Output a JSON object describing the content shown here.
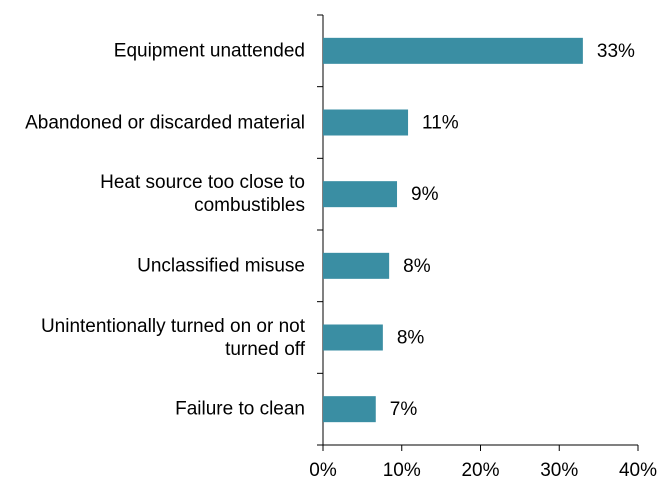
{
  "chart_data": {
    "type": "barh",
    "categories": [
      "Equipment unattended",
      "Abandoned or discarded material",
      "Heat source too close to combustibles",
      "Unclassified misuse",
      "Unintentionally turned on or not turned off",
      "Failure to clean"
    ],
    "values": [
      33,
      10.8,
      9.4,
      8.4,
      7.6,
      6.7
    ],
    "value_labels": [
      "33%",
      "11%",
      "9%",
      "8%",
      "8%",
      "7%"
    ],
    "color": "#3a8ea3",
    "xlim": [
      0,
      40
    ],
    "xticks": [
      {
        "value": 0,
        "label": "0%"
      },
      {
        "value": 10,
        "label": "10%"
      },
      {
        "value": 20,
        "label": "20%"
      },
      {
        "value": 30,
        "label": "30%"
      },
      {
        "value": 40,
        "label": "40%"
      }
    ]
  }
}
